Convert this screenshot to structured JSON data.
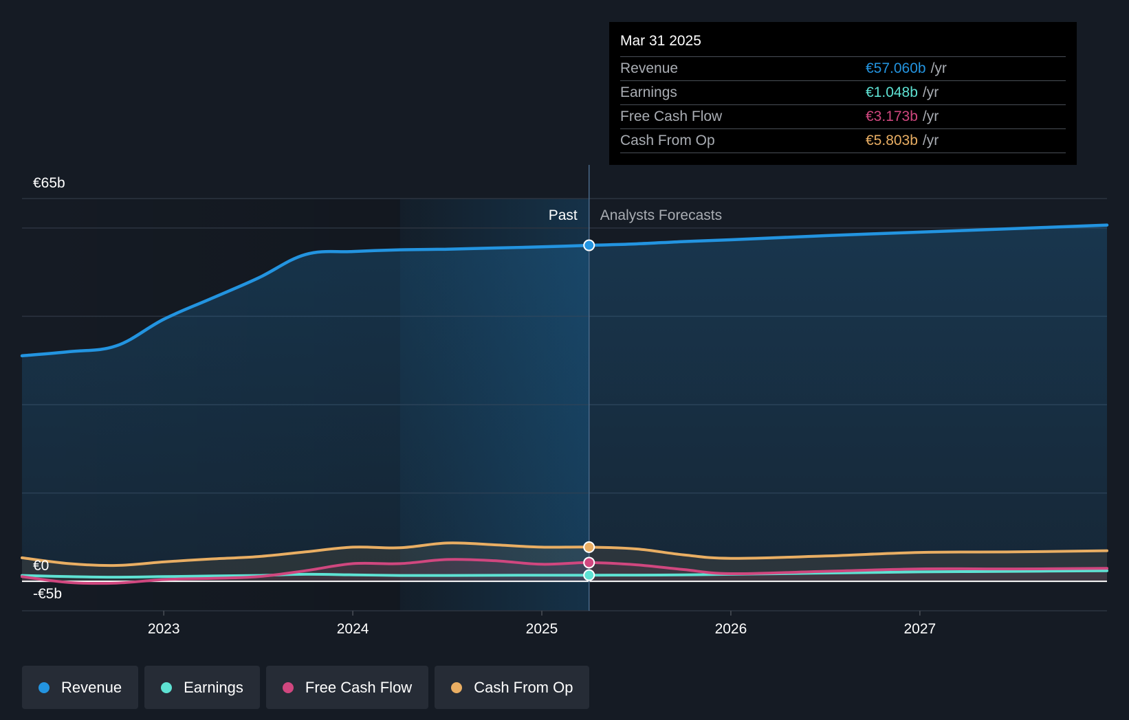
{
  "colors": {
    "revenue": "#2394e0",
    "earnings": "#5ee2d3",
    "fcf": "#d0477f",
    "cfo": "#e9ae63"
  },
  "tooltip": {
    "date": "Mar 31 2025",
    "rows": [
      {
        "label": "Revenue",
        "value": "€57.060b",
        "unit": "/yr"
      },
      {
        "label": "Earnings",
        "value": "€1.048b",
        "unit": "/yr"
      },
      {
        "label": "Free Cash Flow",
        "value": "€3.173b",
        "unit": "/yr"
      },
      {
        "label": "Cash From Op",
        "value": "€5.803b",
        "unit": "/yr"
      }
    ]
  },
  "legend": [
    {
      "label": "Revenue",
      "key": "revenue"
    },
    {
      "label": "Earnings",
      "key": "earnings"
    },
    {
      "label": "Free Cash Flow",
      "key": "fcf"
    },
    {
      "label": "Cash From Op",
      "key": "cfo"
    }
  ],
  "chart_data": {
    "type": "line",
    "title": "",
    "xlabel": "",
    "ylabel": "",
    "xlim": [
      2022.25,
      2027.99
    ],
    "ylim": [
      -5,
      65
    ],
    "y_tick_labels": [
      {
        "value": 65,
        "label": "€65b"
      },
      {
        "value": 0,
        "label": "€0"
      },
      {
        "value": -5,
        "label": "-€5b"
      }
    ],
    "x_ticks": [
      2023,
      2024,
      2025,
      2026,
      2027
    ],
    "x_tick_labels": [
      "2023",
      "2024",
      "2025",
      "2026",
      "2027"
    ],
    "past_label": "Past",
    "forecast_label": "Analysts Forecasts",
    "divider_x": 2025.25,
    "highlight_start": 2024.25,
    "series": [
      {
        "name": "Revenue",
        "key": "revenue",
        "x": [
          2022.25,
          2022.5,
          2022.75,
          2023.0,
          2023.25,
          2023.5,
          2023.75,
          2024.0,
          2024.25,
          2024.5,
          2024.75,
          2025.0,
          2025.25,
          2025.5,
          2025.75,
          2026.0,
          2026.5,
          2027.0,
          2027.5,
          2027.99
        ],
        "y": [
          38.3,
          39.0,
          40.0,
          44.5,
          48.0,
          51.5,
          55.5,
          56.0,
          56.3,
          56.4,
          56.6,
          56.8,
          57.06,
          57.3,
          57.7,
          58.0,
          58.7,
          59.3,
          59.9,
          60.5
        ]
      },
      {
        "name": "Earnings",
        "key": "earnings",
        "x": [
          2022.25,
          2022.5,
          2022.75,
          2023.0,
          2023.25,
          2023.5,
          2023.75,
          2024.0,
          2024.25,
          2024.5,
          2024.75,
          2025.0,
          2025.25,
          2025.5,
          2025.75,
          2026.0,
          2026.5,
          2027.0,
          2027.5,
          2027.99
        ],
        "y": [
          1.0,
          0.8,
          0.7,
          0.8,
          0.9,
          1.0,
          1.2,
          1.1,
          1.0,
          1.0,
          1.02,
          1.04,
          1.048,
          1.05,
          1.1,
          1.2,
          1.4,
          1.6,
          1.7,
          1.8
        ]
      },
      {
        "name": "Free Cash Flow",
        "key": "fcf",
        "x": [
          2022.25,
          2022.5,
          2022.75,
          2023.0,
          2023.25,
          2023.5,
          2023.75,
          2024.0,
          2024.25,
          2024.5,
          2024.75,
          2025.0,
          2025.25,
          2025.5,
          2025.75,
          2026.0,
          2026.5,
          2027.0,
          2027.5,
          2027.99
        ],
        "y": [
          0.8,
          -0.2,
          -0.3,
          0.3,
          0.5,
          0.8,
          1.8,
          3.0,
          3.0,
          3.7,
          3.5,
          2.9,
          3.173,
          2.8,
          2.0,
          1.3,
          1.7,
          2.1,
          2.1,
          2.2
        ]
      },
      {
        "name": "Cash From Op",
        "key": "cfo",
        "x": [
          2022.25,
          2022.5,
          2022.75,
          2023.0,
          2023.25,
          2023.5,
          2023.75,
          2024.0,
          2024.25,
          2024.5,
          2024.75,
          2025.0,
          2025.25,
          2025.5,
          2025.75,
          2026.0,
          2026.5,
          2027.0,
          2027.5,
          2027.99
        ],
        "y": [
          4.0,
          3.0,
          2.7,
          3.3,
          3.8,
          4.2,
          5.0,
          5.8,
          5.7,
          6.5,
          6.2,
          5.8,
          5.803,
          5.5,
          4.5,
          3.9,
          4.3,
          4.9,
          5.0,
          5.2
        ]
      }
    ]
  }
}
